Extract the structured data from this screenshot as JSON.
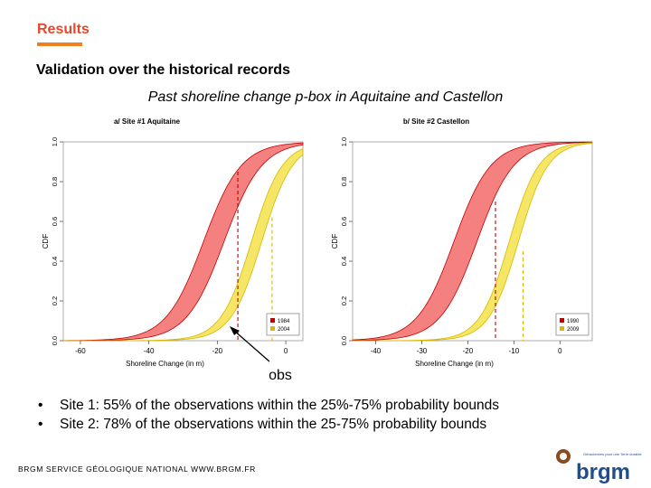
{
  "header": {
    "section": "Results",
    "title": "Validation over the historical records",
    "subtitle": "Past shoreline change p-box in Aquitaine and Castellon"
  },
  "colors": {
    "accent": "#E8462A",
    "underline": "#F07F1E",
    "red_fill": "#F36A6A",
    "red_line": "#C00000",
    "yellow_fill": "#F3E24A",
    "yellow_line": "#D9B600",
    "logo_blue": "#1F4E8C",
    "logo_brown": "#8B4A1F"
  },
  "chart_data": [
    {
      "type": "area",
      "title": "a/ Site #1 Aquitaine",
      "xlabel": "Shoreline Change (in m)",
      "ylabel": "CDF",
      "xlim": [
        -65,
        5
      ],
      "ylim": [
        0,
        1
      ],
      "xticks": [
        -60,
        -40,
        -20,
        0
      ],
      "yticks": [
        "0.0",
        "0.2",
        "0.4",
        "0.6",
        "0.8",
        "1.0"
      ],
      "legend": {
        "position": "bottom-right",
        "entries": [
          "1984",
          "2004"
        ]
      },
      "series": [
        {
          "name": "1984",
          "color": "red",
          "lower_median": -18,
          "upper_median": -24,
          "spread": 5.5
        },
        {
          "name": "2004",
          "color": "yellow",
          "lower_median": -7,
          "upper_median": -10,
          "spread": 4.5
        }
      ],
      "obs_lines": [
        {
          "x": -14,
          "y": 0.85,
          "color": "red"
        },
        {
          "x": -4,
          "y": 0.62,
          "color": "yellow"
        }
      ]
    },
    {
      "type": "area",
      "title": "b/ Site #2 Castellon",
      "xlabel": "Shoreline Change (in m)",
      "ylabel": "CDF",
      "xlim": [
        -45,
        7
      ],
      "ylim": [
        0,
        1
      ],
      "xticks": [
        -40,
        -30,
        -20,
        -10,
        0
      ],
      "yticks": [
        "0.0",
        "0.2",
        "0.4",
        "0.6",
        "0.8",
        "1.0"
      ],
      "legend": {
        "position": "bottom-right",
        "entries": [
          "1990",
          "2009"
        ]
      },
      "series": [
        {
          "name": "1990",
          "color": "red",
          "lower_median": -18,
          "upper_median": -23,
          "spread": 4
        },
        {
          "name": "2009",
          "color": "yellow",
          "lower_median": -9,
          "upper_median": -11,
          "spread": 3.2
        }
      ],
      "obs_lines": [
        {
          "x": -14,
          "y": 0.7,
          "color": "red"
        },
        {
          "x": -8,
          "y": 0.45,
          "color": "yellow"
        }
      ]
    }
  ],
  "annotation": {
    "label": "obs"
  },
  "bullets": [
    "Site 1: 55% of the observations within the 25%-75% probability bounds",
    "Site 2: 78% of the observations within the 25-75% probability bounds"
  ],
  "footer": "BRGM SERVICE GÉOLOGIQUE NATIONAL WWW.BRGM.FR",
  "logo": {
    "name": "brgm",
    "tagline": "Géosciences pour une Terre durable"
  }
}
